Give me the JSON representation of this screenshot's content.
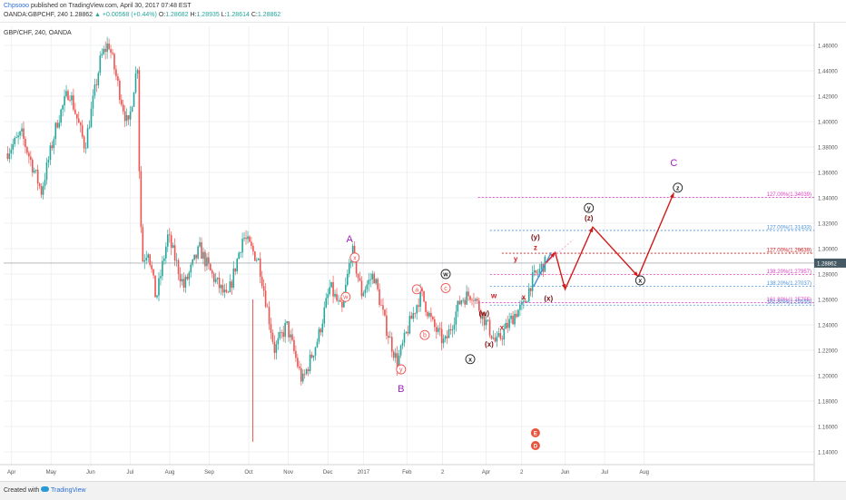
{
  "header": {
    "author": "Chpsooo",
    "published_text": "published on TradingView.com, April 30, 2017 07:48 EST",
    "symbol": "OANDA:GBPCHF, 240",
    "last": "1.28862",
    "arrow": "▲",
    "change": "+0.00568 (+0.44%)",
    "open_label": "O:",
    "open": "1.28682",
    "high_label": "H:",
    "high": "1.28935",
    "low_label": "L:",
    "low": "1.28614",
    "close_label": "C:",
    "close": "1.28862"
  },
  "chart_title": "GBP/CHF, 240, OANDA",
  "footer": {
    "created_with": "Created with",
    "brand": "TradingView"
  },
  "colors": {
    "up_candle": "#26a69a",
    "down_candle": "#ef5350",
    "grid": "#eef0f3",
    "wave_purple": "#a020c0",
    "wave_red": "#d01b1b",
    "fib_pink": "#e040c0",
    "fib_blue": "#4a90d9",
    "fib_red": "#d01b1b",
    "price_tag": "#455a64"
  },
  "chart_data": {
    "type": "candlestick",
    "title": "GBP/CHF, 240, OANDA",
    "ylim": [
      1.13,
      1.475
    ],
    "y_ticks": [
      1.14,
      1.16,
      1.18,
      1.2,
      1.22,
      1.24,
      1.26,
      1.28,
      1.3,
      1.32,
      1.34,
      1.36,
      1.38,
      1.4,
      1.42,
      1.44,
      1.46
    ],
    "y_tick_labels": [
      "1.14000",
      "1.16000",
      "1.18000",
      "1.20000",
      "1.22000",
      "1.24000",
      "1.26000",
      "1.28000",
      "1.30000",
      "1.32000",
      "1.34000",
      "1.36000",
      "1.38000",
      "1.40000",
      "1.42000",
      "1.44000",
      "1.46000"
    ],
    "x_months": [
      {
        "label": "Apr",
        "m": 0.1
      },
      {
        "label": "May",
        "m": 1.1
      },
      {
        "label": "Jun",
        "m": 2.1
      },
      {
        "label": "Jul",
        "m": 3.1
      },
      {
        "label": "Aug",
        "m": 4.1
      },
      {
        "label": "Sep",
        "m": 5.1
      },
      {
        "label": "Oct",
        "m": 6.1
      },
      {
        "label": "Nov",
        "m": 7.1
      },
      {
        "label": "Dec",
        "m": 8.1
      },
      {
        "label": "2017",
        "m": 9.0
      },
      {
        "label": "Feb",
        "m": 10.1
      },
      {
        "label": "2",
        "m": 11.0
      },
      {
        "label": "Apr",
        "m": 12.1
      },
      {
        "label": "2",
        "m": 13.0
      },
      {
        "label": "Jun",
        "m": 14.1
      },
      {
        "label": "Jul",
        "m": 15.1
      },
      {
        "label": "Aug",
        "m": 16.1
      }
    ],
    "x_range_months": [
      -0.1,
      20.4
    ],
    "price_path": [
      [
        0.0,
        1.375
      ],
      [
        0.4,
        1.39
      ],
      [
        0.9,
        1.345
      ],
      [
        1.3,
        1.4
      ],
      [
        1.6,
        1.425
      ],
      [
        2.0,
        1.38
      ],
      [
        2.4,
        1.45
      ],
      [
        2.6,
        1.462
      ],
      [
        2.9,
        1.42
      ],
      [
        3.1,
        1.395
      ],
      [
        3.25,
        1.43
      ],
      [
        3.33,
        1.445
      ],
      [
        3.38,
        1.355
      ],
      [
        3.45,
        1.29
      ],
      [
        3.6,
        1.3
      ],
      [
        3.8,
        1.26
      ],
      [
        4.1,
        1.31
      ],
      [
        4.5,
        1.27
      ],
      [
        4.9,
        1.3
      ],
      [
        5.2,
        1.28
      ],
      [
        5.6,
        1.26
      ],
      [
        6.0,
        1.31
      ],
      [
        6.4,
        1.29
      ],
      [
        6.8,
        1.22
      ],
      [
        7.1,
        1.24
      ],
      [
        7.5,
        1.195
      ],
      [
        7.9,
        1.23
      ],
      [
        8.2,
        1.27
      ],
      [
        8.5,
        1.25
      ],
      [
        8.75,
        1.3
      ],
      [
        9.0,
        1.265
      ],
      [
        9.3,
        1.28
      ],
      [
        9.6,
        1.24
      ],
      [
        9.9,
        1.21
      ],
      [
        10.2,
        1.24
      ],
      [
        10.5,
        1.265
      ],
      [
        10.8,
        1.24
      ],
      [
        11.1,
        1.225
      ],
      [
        11.5,
        1.26
      ],
      [
        11.8,
        1.265
      ],
      [
        12.1,
        1.245
      ],
      [
        12.4,
        1.225
      ],
      [
        12.6,
        1.235
      ],
      [
        12.9,
        1.25
      ],
      [
        13.1,
        1.255
      ],
      [
        13.3,
        1.275
      ],
      [
        13.5,
        1.283
      ],
      [
        13.6,
        1.288
      ]
    ],
    "current_price": "1.28862",
    "current_value": 1.28862,
    "wave_path": [
      [
        13.6,
        1.288
      ],
      [
        13.85,
        1.297
      ],
      [
        14.1,
        1.268
      ],
      [
        14.8,
        1.317
      ],
      [
        15.95,
        1.278
      ],
      [
        16.85,
        1.344
      ]
    ],
    "wave_path_start_blue": [
      [
        13.3,
        1.27
      ],
      [
        13.6,
        1.288
      ],
      [
        13.75,
        1.297
      ]
    ],
    "fib_levels": [
      {
        "label": "127.00%(1.34039)",
        "value": 1.34039,
        "x0": 11.9,
        "color": "#e040c0"
      },
      {
        "label": "127.00%(1.31433)",
        "value": 1.31433,
        "x0": 12.2,
        "color": "#4a90d9"
      },
      {
        "label": "127.00%(1.29639)",
        "value": 1.29639,
        "x0": 12.5,
        "color": "#d01b1b"
      },
      {
        "label": "138.20%(1.27957)",
        "value": 1.27957,
        "x0": 12.2,
        "color": "#e040c0"
      },
      {
        "label": "138.20%(1.27037)",
        "value": 1.27037,
        "x0": 12.2,
        "color": "#4a90d9"
      },
      {
        "label": "161.80%(1.25755)",
        "value": 1.25755,
        "x0": 11.9,
        "color": "#e040c0"
      },
      {
        "label": "161.80%(1.25555)",
        "value": 1.25555,
        "x0": 12.2,
        "color": "#4a90d9"
      }
    ],
    "wave_labels": [
      {
        "text": "A",
        "m": 8.65,
        "v": 1.305,
        "style": "big",
        "color": "#a020c0"
      },
      {
        "text": "B",
        "m": 9.95,
        "v": 1.187,
        "style": "big",
        "color": "#a020c0"
      },
      {
        "text": "C",
        "m": 16.85,
        "v": 1.365,
        "style": "big",
        "color": "#a020c0"
      },
      {
        "text": "x",
        "m": 8.78,
        "v": 1.293,
        "style": "circle",
        "color": "#ef5350"
      },
      {
        "text": "w",
        "m": 8.55,
        "v": 1.262,
        "style": "circle",
        "color": "#ef5350"
      },
      {
        "text": "y",
        "m": 9.95,
        "v": 1.205,
        "style": "circle",
        "color": "#ef5350"
      },
      {
        "text": "a",
        "m": 10.35,
        "v": 1.268,
        "style": "circle",
        "color": "#ef5350"
      },
      {
        "text": "b",
        "m": 10.55,
        "v": 1.232,
        "style": "circle",
        "color": "#ef5350"
      },
      {
        "text": "c",
        "m": 11.08,
        "v": 1.269,
        "style": "circle",
        "color": "#ef5350"
      },
      {
        "text": "w",
        "m": 11.08,
        "v": 1.28,
        "style": "circle-dark",
        "color": "#222222"
      },
      {
        "text": "x",
        "m": 11.7,
        "v": 1.213,
        "style": "circle-dark",
        "color": "#222222"
      },
      {
        "text": "(x)",
        "m": 12.18,
        "v": 1.223,
        "style": "text-dark",
        "color": "#7a1010"
      },
      {
        "text": "(w)",
        "m": 12.05,
        "v": 1.247,
        "style": "text-dark",
        "color": "#7a1010"
      },
      {
        "text": "w",
        "m": 12.3,
        "v": 1.261,
        "style": "text",
        "color": "#d01b1b"
      },
      {
        "text": "x",
        "m": 12.5,
        "v": 1.236,
        "style": "text",
        "color": "#d01b1b"
      },
      {
        "text": "y",
        "m": 12.85,
        "v": 1.29,
        "style": "text",
        "color": "#d01b1b"
      },
      {
        "text": "x",
        "m": 13.05,
        "v": 1.26,
        "style": "text",
        "color": "#d01b1b"
      },
      {
        "text": "z",
        "m": 13.35,
        "v": 1.299,
        "style": "text",
        "color": "#d01b1b"
      },
      {
        "text": "(y)",
        "m": 13.35,
        "v": 1.307,
        "style": "text-dark",
        "color": "#7a1010"
      },
      {
        "text": "(x)",
        "m": 13.68,
        "v": 1.259,
        "style": "text-dark",
        "color": "#7a1010"
      },
      {
        "text": "y",
        "m": 14.7,
        "v": 1.332,
        "style": "circle-dark",
        "color": "#222222"
      },
      {
        "text": "(z)",
        "m": 14.7,
        "v": 1.322,
        "style": "text-dark",
        "color": "#7a1010"
      },
      {
        "text": "x",
        "m": 16.0,
        "v": 1.275,
        "style": "circle-dark",
        "color": "#222222"
      },
      {
        "text": "z",
        "m": 16.95,
        "v": 1.348,
        "style": "circle-dark",
        "color": "#222222"
      }
    ],
    "event_markers": [
      {
        "text": "E",
        "m": 13.35,
        "v": 1.155,
        "color": "#e8533b"
      },
      {
        "text": "D",
        "m": 13.35,
        "v": 1.145,
        "color": "#e8533b"
      }
    ],
    "grid": true
  }
}
